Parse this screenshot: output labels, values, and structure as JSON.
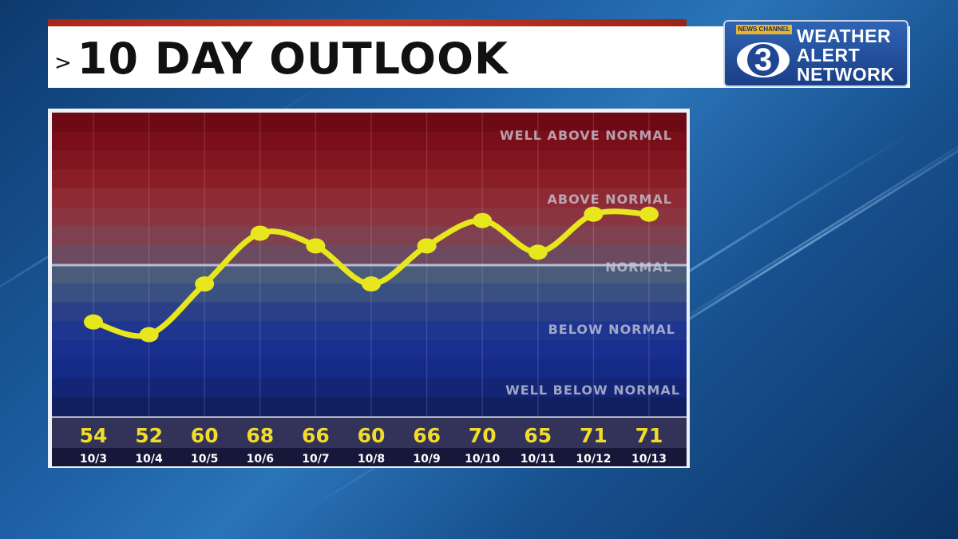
{
  "header": {
    "chevron": ">",
    "title": "10 DAY OUTLOOK"
  },
  "logo": {
    "news_channel": "NEWS CHANNEL",
    "number": "3",
    "line1": "WEATHER",
    "line2": "ALERT",
    "line3": "NETWORK"
  },
  "colors": {
    "line": "#e8e61c",
    "marker": "#e8e61c",
    "header_accent": "#b8321f",
    "normal_line": "#c9cde0",
    "value_text": "#f2dc2a"
  },
  "chart_data": {
    "type": "line",
    "x": [
      "10/3",
      "10/4",
      "10/5",
      "10/6",
      "10/7",
      "10/8",
      "10/9",
      "10/10",
      "10/11",
      "10/12",
      "10/13"
    ],
    "series": [
      {
        "values": [
          54,
          52,
          60,
          68,
          66,
          60,
          66,
          70,
          65,
          71,
          71
        ]
      }
    ],
    "bands": [
      "WELL ABOVE NORMAL",
      "ABOVE NORMAL",
      "NORMAL",
      "BELOW NORMAL",
      "WELL BELOW NORMAL"
    ],
    "title": "",
    "xlabel": "",
    "ylabel": "",
    "grid": true
  }
}
